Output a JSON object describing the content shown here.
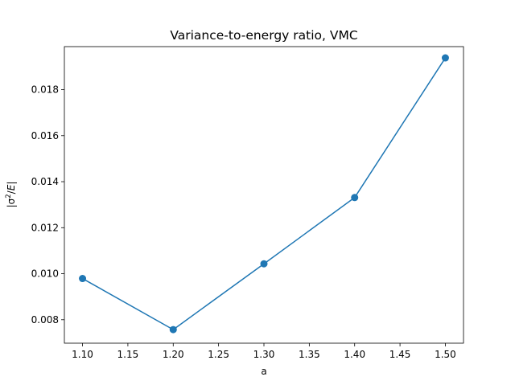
{
  "chart_data": {
    "type": "line",
    "title": "Variance-to-energy ratio, VMC",
    "xlabel": "a",
    "ylabel": "|σ²/E|",
    "x": [
      1.1,
      1.2,
      1.3,
      1.4,
      1.5
    ],
    "series": [
      {
        "values": [
          0.00979,
          0.00757,
          0.01043,
          0.01331,
          0.01938
        ],
        "color": "#1f77b4",
        "marker": "circle"
      }
    ],
    "xlim": [
      1.08,
      1.52
    ],
    "ylim": [
      0.00698,
      0.01987
    ],
    "xticks": [
      1.1,
      1.15,
      1.2,
      1.25,
      1.3,
      1.35,
      1.4,
      1.45,
      1.5
    ],
    "xtick_labels": [
      "1.10",
      "1.15",
      "1.20",
      "1.25",
      "1.30",
      "1.35",
      "1.40",
      "1.45",
      "1.50"
    ],
    "yticks": [
      0.008,
      0.01,
      0.012,
      0.014,
      0.016,
      0.018
    ],
    "ytick_labels": [
      "0.008",
      "0.010",
      "0.012",
      "0.014",
      "0.016",
      "0.018"
    ],
    "grid": false,
    "legend": "none"
  }
}
